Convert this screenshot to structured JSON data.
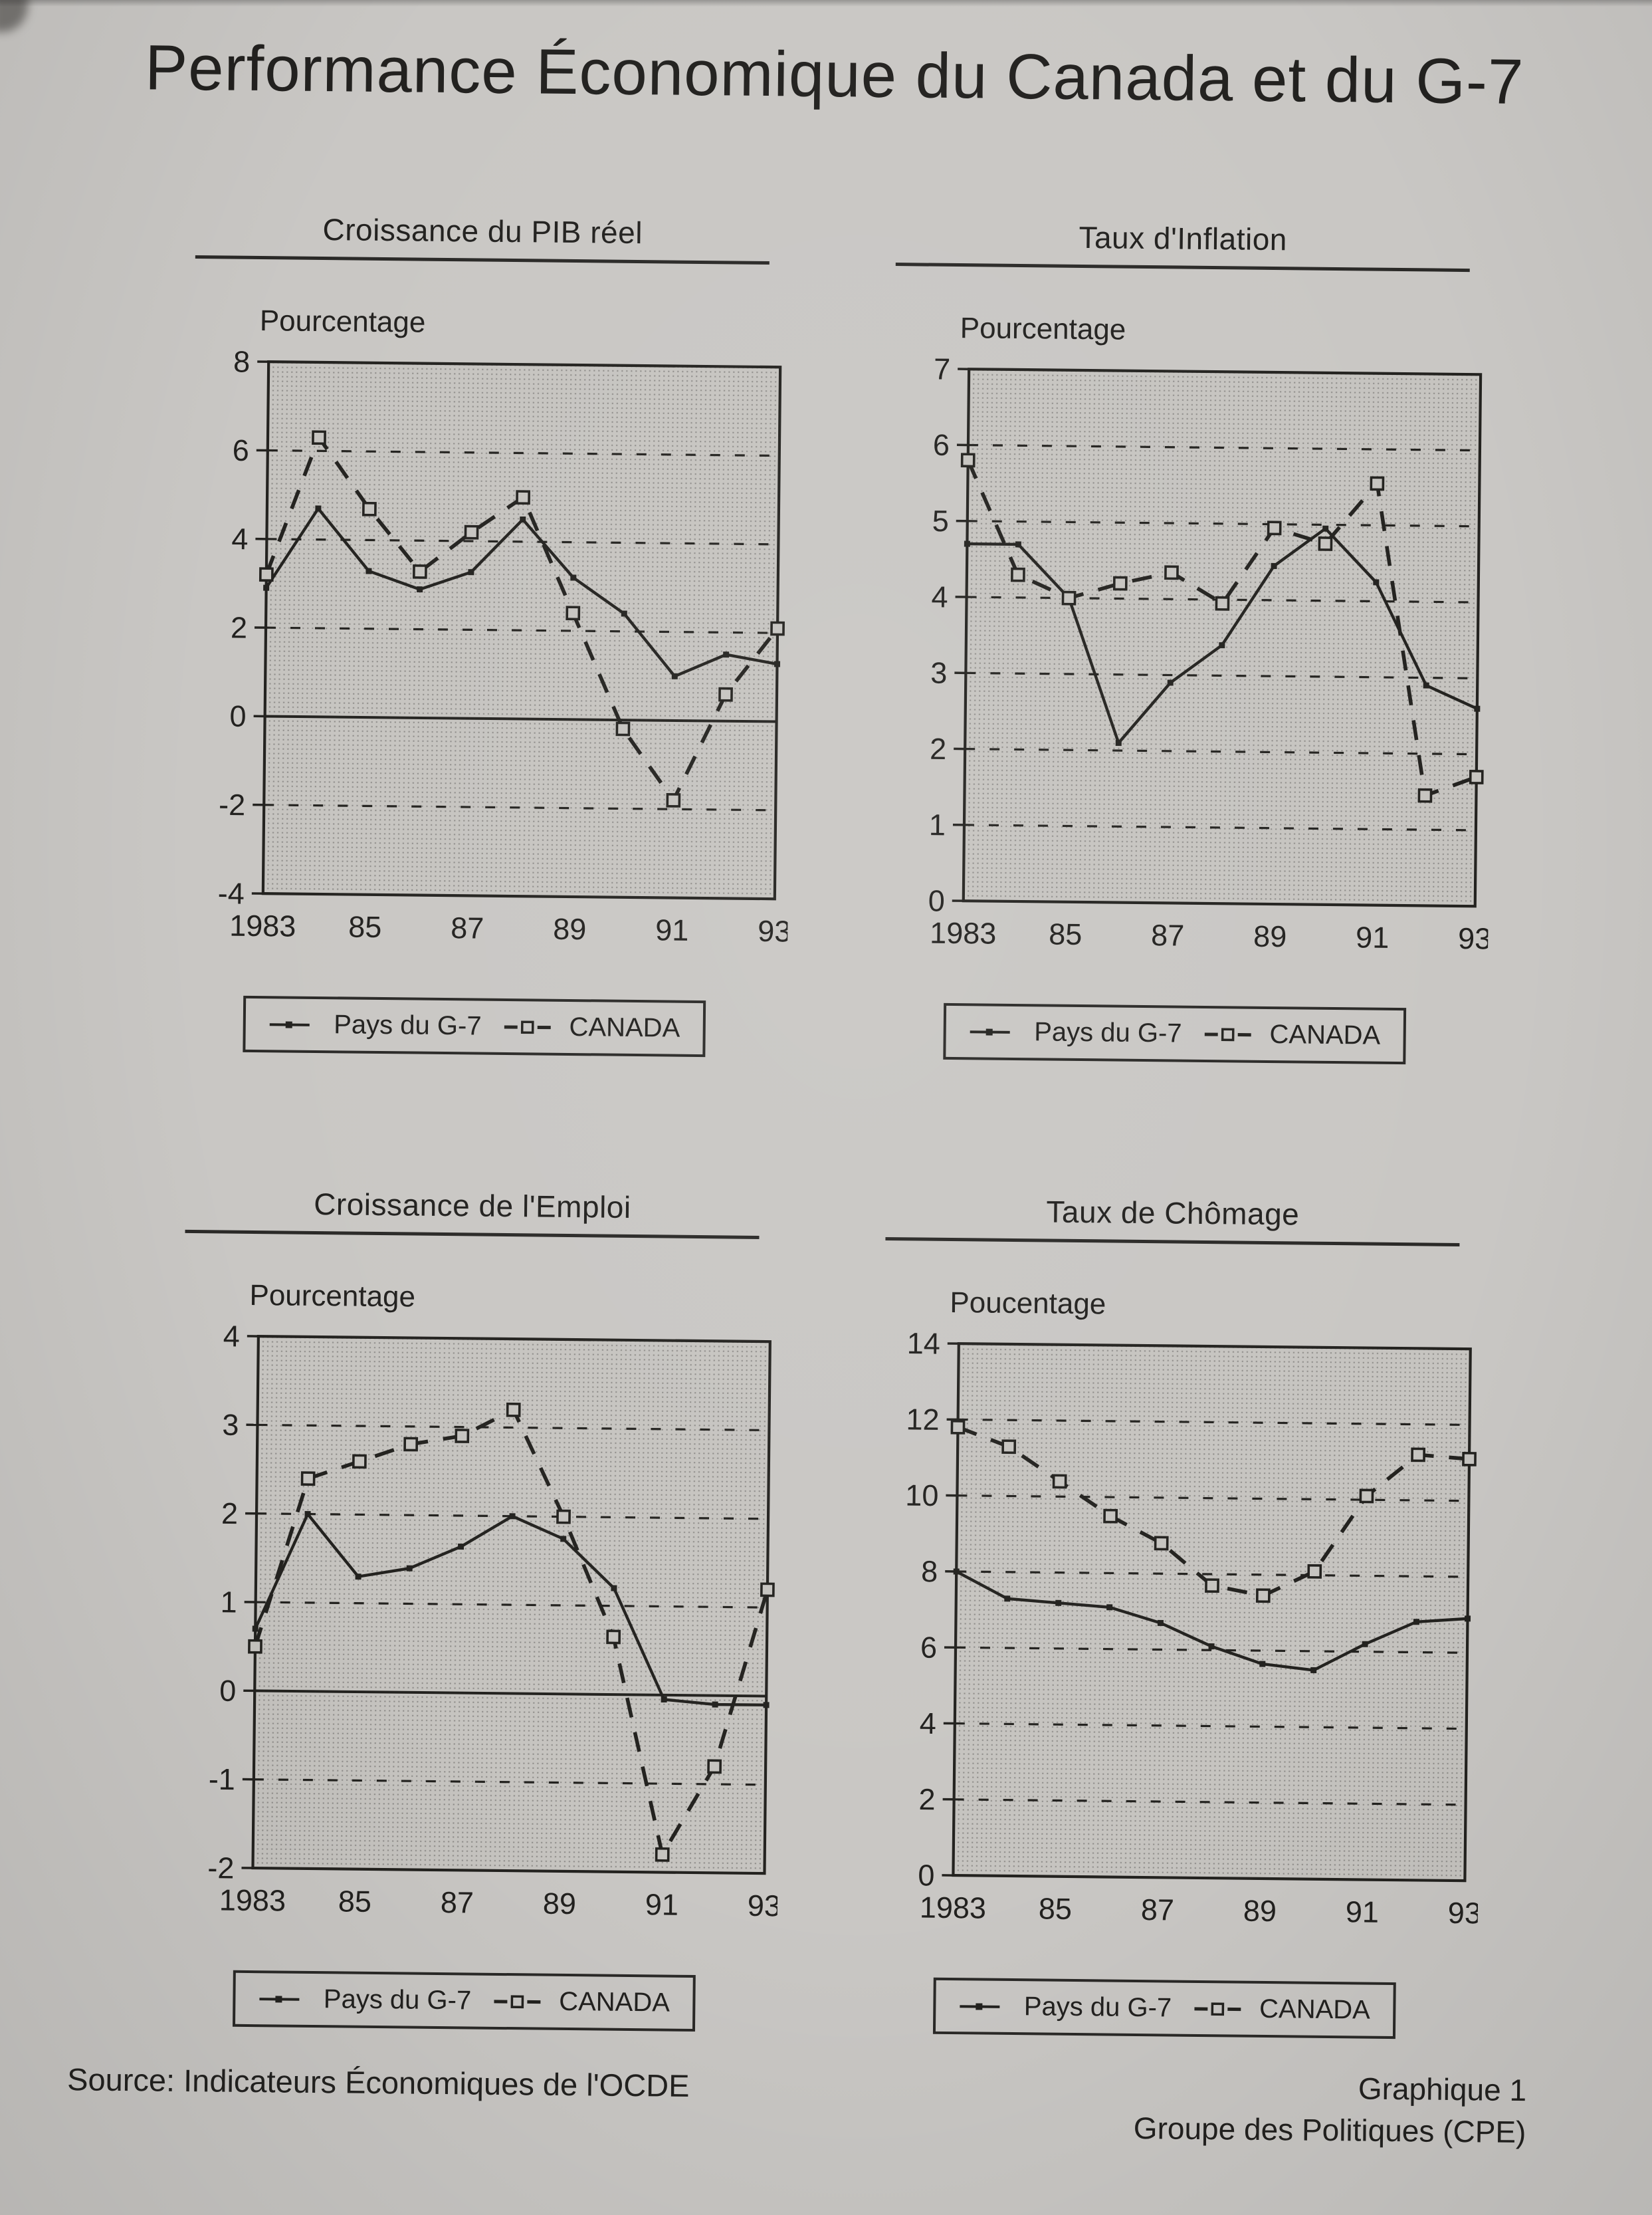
{
  "page": {
    "title": "Performance Économique du Canada et du G-7",
    "source_note": "Source: Indicateurs Économiques de l'OCDE",
    "caption_line1": "Graphique 1",
    "caption_line2": "Groupe des Politiques (CPE)"
  },
  "colors": {
    "ink": "#23221f",
    "paper": "#c9c7c4",
    "plot_bg": "#c6c4c0",
    "plot_dot": "#8e8c89"
  },
  "legend": {
    "g7_label": "Pays du G-7",
    "canada_label": "CANADA"
  },
  "chart_data": [
    {
      "type": "line",
      "title": "Croissance du PIB réel",
      "ylabel": "Pourcentage",
      "xlabel": "",
      "grid": "dashed-horizontal",
      "legend_position": "bottom",
      "x": [
        1983,
        1984,
        1985,
        1986,
        1987,
        1988,
        1989,
        1990,
        1991,
        1992,
        1993
      ],
      "xticks": [
        {
          "year": 1983,
          "label": "1983"
        },
        {
          "year": 1985,
          "label": "85"
        },
        {
          "year": 1987,
          "label": "87"
        },
        {
          "year": 1989,
          "label": "89"
        },
        {
          "year": 1991,
          "label": "91"
        },
        {
          "year": 1993,
          "label": "93"
        }
      ],
      "ylim": [
        -4,
        8
      ],
      "yticks": [
        8,
        6,
        4,
        2,
        0,
        -2,
        -4
      ],
      "series": [
        {
          "name": "Pays du G-7",
          "style": "solid",
          "marker": "dot",
          "values": [
            2.9,
            4.7,
            3.3,
            2.9,
            3.3,
            4.5,
            3.2,
            2.4,
            1.0,
            1.5,
            1.3
          ]
        },
        {
          "name": "CANADA",
          "style": "dashed",
          "marker": "square",
          "values": [
            3.2,
            6.3,
            4.7,
            3.3,
            4.2,
            5.0,
            2.4,
            -0.2,
            -1.8,
            0.6,
            2.1
          ]
        }
      ]
    },
    {
      "type": "line",
      "title": "Taux d'Inflation",
      "ylabel": "Pourcentage",
      "xlabel": "",
      "grid": "dashed-horizontal",
      "legend_position": "bottom",
      "x": [
        1983,
        1984,
        1985,
        1986,
        1987,
        1988,
        1989,
        1990,
        1991,
        1992,
        1993
      ],
      "xticks": [
        {
          "year": 1983,
          "label": "1983"
        },
        {
          "year": 1985,
          "label": "85"
        },
        {
          "year": 1987,
          "label": "87"
        },
        {
          "year": 1989,
          "label": "89"
        },
        {
          "year": 1991,
          "label": "91"
        },
        {
          "year": 1993,
          "label": "93"
        }
      ],
      "ylim": [
        0,
        7
      ],
      "yticks": [
        7,
        6,
        5,
        4,
        3,
        2,
        1,
        0
      ],
      "series": [
        {
          "name": "Pays du G-7",
          "style": "solid",
          "marker": "dot",
          "values": [
            4.7,
            4.7,
            4.0,
            2.1,
            2.9,
            3.4,
            4.45,
            4.95,
            4.25,
            2.9,
            2.6
          ]
        },
        {
          "name": "CANADA",
          "style": "dashed",
          "marker": "square",
          "values": [
            5.8,
            4.3,
            4.0,
            4.2,
            4.35,
            3.95,
            4.95,
            4.75,
            5.55,
            1.45,
            1.7
          ]
        }
      ]
    },
    {
      "type": "line",
      "title": "Croissance de l'Emploi",
      "ylabel": "Pourcentage",
      "xlabel": "",
      "grid": "dashed-horizontal",
      "legend_position": "bottom",
      "x": [
        1983,
        1984,
        1985,
        1986,
        1987,
        1988,
        1989,
        1990,
        1991,
        1992,
        1993
      ],
      "xticks": [
        {
          "year": 1983,
          "label": "1983"
        },
        {
          "year": 1985,
          "label": "85"
        },
        {
          "year": 1987,
          "label": "87"
        },
        {
          "year": 1989,
          "label": "89"
        },
        {
          "year": 1991,
          "label": "91"
        },
        {
          "year": 1993,
          "label": "93"
        }
      ],
      "ylim": [
        -2,
        4
      ],
      "yticks": [
        4,
        3,
        2,
        1,
        0,
        -1,
        -2
      ],
      "series": [
        {
          "name": "Pays du G-7",
          "style": "solid",
          "marker": "dot",
          "values": [
            0.7,
            2.0,
            1.3,
            1.4,
            1.65,
            2.0,
            1.75,
            1.2,
            -0.05,
            -0.1,
            -0.1
          ]
        },
        {
          "name": "CANADA",
          "style": "dashed",
          "marker": "square",
          "values": [
            0.5,
            2.4,
            2.6,
            2.8,
            2.9,
            3.2,
            2.0,
            0.65,
            -1.8,
            -0.8,
            1.2
          ]
        }
      ]
    },
    {
      "type": "line",
      "title": "Taux de Chômage",
      "ylabel": "Poucentage",
      "xlabel": "",
      "grid": "dashed-horizontal",
      "legend_position": "bottom",
      "x": [
        1983,
        1984,
        1985,
        1986,
        1987,
        1988,
        1989,
        1990,
        1991,
        1992,
        1993
      ],
      "xticks": [
        {
          "year": 1983,
          "label": "1983"
        },
        {
          "year": 1985,
          "label": "85"
        },
        {
          "year": 1987,
          "label": "87"
        },
        {
          "year": 1989,
          "label": "89"
        },
        {
          "year": 1991,
          "label": "91"
        },
        {
          "year": 1993,
          "label": "93"
        }
      ],
      "ylim": [
        0,
        14
      ],
      "yticks": [
        14,
        12,
        10,
        8,
        6,
        4,
        2,
        0
      ],
      "series": [
        {
          "name": "Pays du G-7",
          "style": "solid",
          "marker": "dot",
          "values": [
            8.0,
            7.3,
            7.2,
            7.1,
            6.7,
            6.1,
            5.65,
            5.5,
            6.2,
            6.8,
            6.9
          ]
        },
        {
          "name": "CANADA",
          "style": "dashed",
          "marker": "square",
          "values": [
            11.8,
            11.3,
            10.4,
            9.5,
            8.8,
            7.7,
            7.45,
            8.1,
            10.1,
            11.2,
            11.1
          ]
        }
      ]
    }
  ]
}
